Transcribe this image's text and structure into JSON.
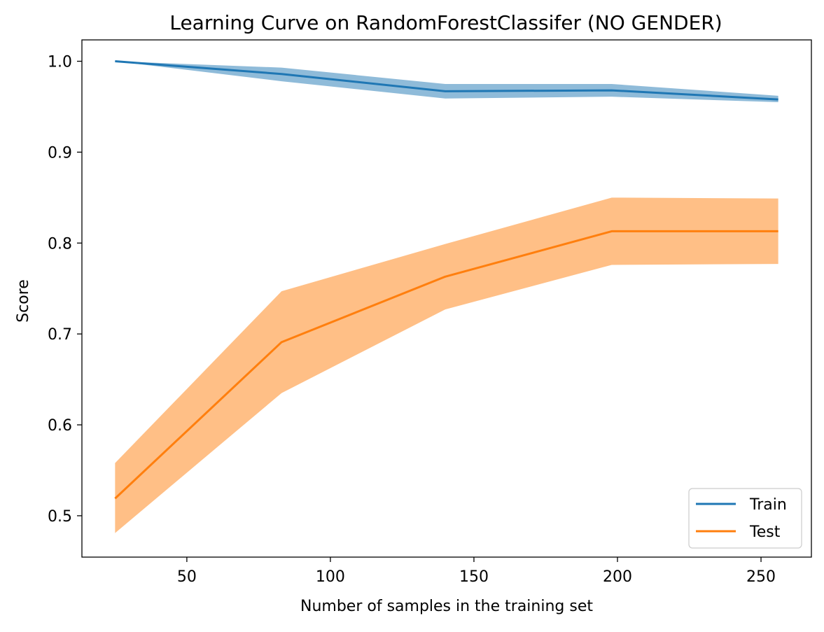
{
  "chart_data": {
    "type": "line",
    "title": "Learning Curve on RandomForestClassifer (NO GENDER)",
    "xlabel": "Number of samples in the training set",
    "ylabel": "Score",
    "xlim": [
      13.45,
      267.55
    ],
    "ylim": [
      0.4545,
      1.0235
    ],
    "xticks": [
      50,
      100,
      150,
      200,
      250
    ],
    "yticks": [
      0.5,
      0.6,
      0.7,
      0.8,
      0.9,
      1.0
    ],
    "xtick_labels": [
      "50",
      "100",
      "150",
      "200",
      "250"
    ],
    "ytick_labels": [
      "0.5",
      "0.6",
      "0.7",
      "0.8",
      "0.9",
      "1.0"
    ],
    "grid": false,
    "legend": {
      "placement": "bottom-right",
      "entries": [
        "Train",
        "Test"
      ]
    },
    "x": [
      25,
      83,
      140,
      198,
      256
    ],
    "series": [
      {
        "name": "Train",
        "color": "#1f77b4",
        "values": [
          1.0,
          0.986,
          0.967,
          0.968,
          0.958
        ],
        "lower": [
          1.0,
          0.978,
          0.959,
          0.961,
          0.955
        ],
        "upper": [
          1.0,
          0.993,
          0.975,
          0.975,
          0.962
        ]
      },
      {
        "name": "Test",
        "color": "#ff7f0e",
        "values": [
          0.519,
          0.691,
          0.763,
          0.813,
          0.813
        ],
        "lower": [
          0.481,
          0.635,
          0.727,
          0.776,
          0.777
        ],
        "upper": [
          0.558,
          0.747,
          0.799,
          0.85,
          0.849
        ]
      }
    ]
  }
}
